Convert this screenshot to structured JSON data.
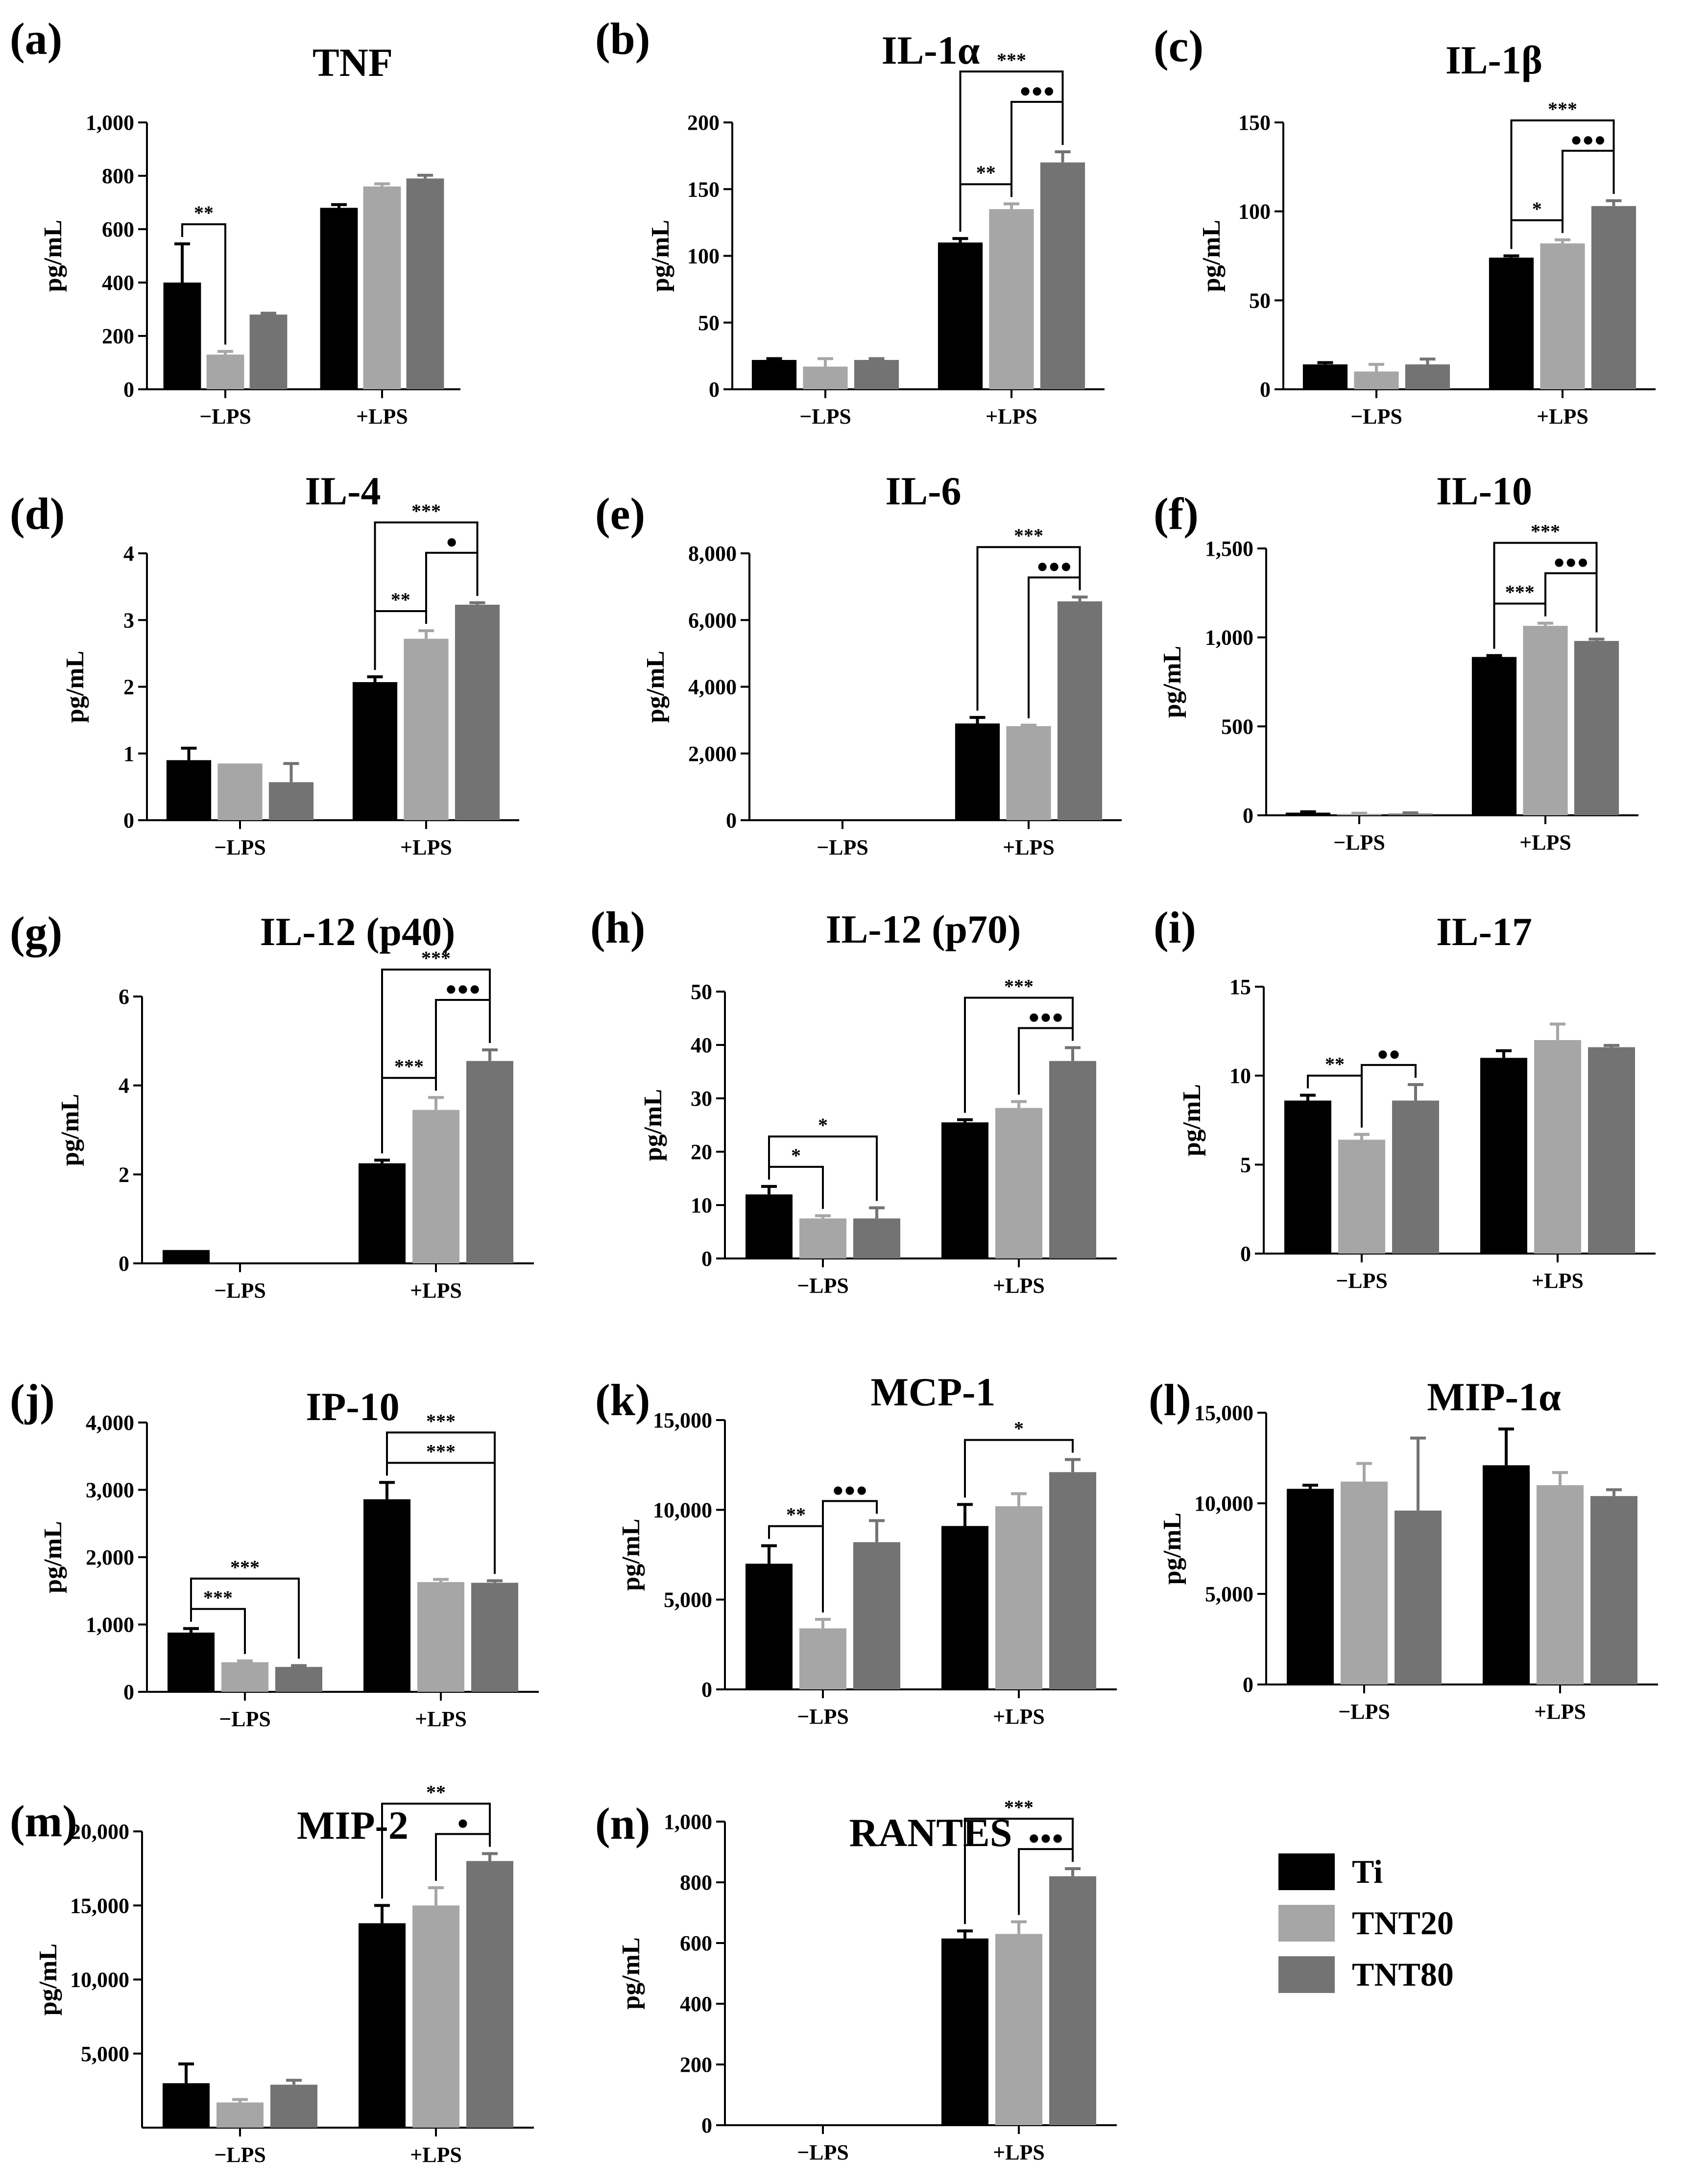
{
  "colors": {
    "Ti": "#000000",
    "TNT20": "#a6a6a6",
    "TNT80": "#737373"
  },
  "legend": [
    {
      "name": "Ti",
      "color": "#000000"
    },
    {
      "name": "TNT20",
      "color": "#a6a6a6"
    },
    {
      "name": "TNT80",
      "color": "#737373"
    }
  ],
  "chart_data": [
    {
      "letter": "(a)",
      "title": "TNF",
      "type": "bar",
      "ylabel": "pg/mL",
      "ylim": [
        0,
        1000
      ],
      "yticks": [
        "0",
        "200",
        "400",
        "600",
        "800",
        "1,000"
      ],
      "categories": [
        "−LPS",
        "+LPS"
      ],
      "series": [
        {
          "name": "Ti",
          "values": [
            400,
            680
          ],
          "errors": [
            145,
            12
          ]
        },
        {
          "name": "TNT20",
          "values": [
            130,
            760
          ],
          "errors": [
            12,
            10
          ]
        },
        {
          "name": "TNT80",
          "values": [
            280,
            790
          ],
          "errors": [
            5,
            12
          ]
        }
      ],
      "annotations": [
        {
          "from": [
            0,
            0
          ],
          "to": [
            0,
            1
          ],
          "label": "**",
          "level": 0
        }
      ]
    },
    {
      "letter": "(b)",
      "title": "IL-1α",
      "type": "bar",
      "ylabel": "pg/mL",
      "ylim": [
        0,
        200
      ],
      "yticks": [
        "0",
        "50",
        "100",
        "150",
        "200"
      ],
      "categories": [
        "−LPS",
        "+LPS"
      ],
      "series": [
        {
          "name": "Ti",
          "values": [
            22,
            110
          ],
          "errors": [
            1,
            3
          ]
        },
        {
          "name": "TNT20",
          "values": [
            17,
            135
          ],
          "errors": [
            6,
            4
          ]
        },
        {
          "name": "TNT80",
          "values": [
            22,
            170
          ],
          "errors": [
            1,
            8
          ]
        }
      ],
      "annotations": [
        {
          "from": [
            1,
            0
          ],
          "to": [
            1,
            1
          ],
          "label": "**",
          "level": 0
        },
        {
          "from": [
            1,
            1
          ],
          "to": [
            1,
            2
          ],
          "label": "●●●",
          "level": 1
        },
        {
          "from": [
            1,
            0
          ],
          "to": [
            1,
            2
          ],
          "label": "***",
          "level": 2
        }
      ]
    },
    {
      "letter": "(c)",
      "title": "IL-1β",
      "type": "bar",
      "ylabel": "pg/mL",
      "ylim": [
        0,
        150
      ],
      "yticks": [
        "0",
        "50",
        "100",
        "150"
      ],
      "categories": [
        "−LPS",
        "+LPS"
      ],
      "series": [
        {
          "name": "Ti",
          "values": [
            14,
            74
          ],
          "errors": [
            1,
            1
          ]
        },
        {
          "name": "TNT20",
          "values": [
            10,
            82
          ],
          "errors": [
            4,
            2
          ]
        },
        {
          "name": "TNT80",
          "values": [
            14,
            103
          ],
          "errors": [
            3,
            3
          ]
        }
      ],
      "annotations": [
        {
          "from": [
            1,
            0
          ],
          "to": [
            1,
            1
          ],
          "label": "*",
          "level": 0
        },
        {
          "from": [
            1,
            1
          ],
          "to": [
            1,
            2
          ],
          "label": "●●●",
          "level": 1
        },
        {
          "from": [
            1,
            0
          ],
          "to": [
            1,
            2
          ],
          "label": "***",
          "level": 2
        }
      ]
    },
    {
      "letter": "(d)",
      "title": "IL-4",
      "type": "bar",
      "ylabel": "pg/mL",
      "ylim": [
        0,
        4
      ],
      "yticks": [
        "0",
        "1",
        "2",
        "3",
        "4"
      ],
      "categories": [
        "−LPS",
        "+LPS"
      ],
      "series": [
        {
          "name": "Ti",
          "values": [
            0.9,
            2.07
          ],
          "errors": [
            0.18,
            0.08
          ]
        },
        {
          "name": "TNT20",
          "values": [
            0.85,
            2.72
          ],
          "errors": [
            0.0,
            0.12
          ]
        },
        {
          "name": "TNT80",
          "values": [
            0.57,
            3.23
          ],
          "errors": [
            0.28,
            0.03
          ]
        }
      ],
      "annotations": [
        {
          "from": [
            1,
            0
          ],
          "to": [
            1,
            1
          ],
          "label": "**",
          "level": 0
        },
        {
          "from": [
            1,
            1
          ],
          "to": [
            1,
            2
          ],
          "label": "●",
          "level": 1
        },
        {
          "from": [
            1,
            0
          ],
          "to": [
            1,
            2
          ],
          "label": "***",
          "level": 2
        }
      ]
    },
    {
      "letter": "(e)",
      "title": "IL-6",
      "type": "bar",
      "ylabel": "pg/mL",
      "ylim": [
        0,
        8000
      ],
      "yticks": [
        "0",
        "2,000",
        "4,000",
        "6,000",
        "8,000"
      ],
      "categories": [
        "−LPS",
        "+LPS"
      ],
      "series": [
        {
          "name": "Ti",
          "values": [
            0,
            2900
          ],
          "errors": [
            0,
            180
          ]
        },
        {
          "name": "TNT20",
          "values": [
            0,
            2820
          ],
          "errors": [
            0,
            30
          ]
        },
        {
          "name": "TNT80",
          "values": [
            0,
            6560
          ],
          "errors": [
            0,
            130
          ]
        }
      ],
      "annotations": [
        {
          "from": [
            1,
            1
          ],
          "to": [
            1,
            2
          ],
          "label": "●●●",
          "level": 0
        },
        {
          "from": [
            1,
            0
          ],
          "to": [
            1,
            2
          ],
          "label": "***",
          "level": 1
        }
      ]
    },
    {
      "letter": "(f)",
      "title": "IL-10",
      "type": "bar",
      "ylabel": "pg/mL",
      "ylim": [
        0,
        1500
      ],
      "yticks": [
        "0",
        "500",
        "1,000",
        "1,500"
      ],
      "categories": [
        "−LPS",
        "+LPS"
      ],
      "series": [
        {
          "name": "Ti",
          "values": [
            15,
            890
          ],
          "errors": [
            5,
            8
          ]
        },
        {
          "name": "TNT20",
          "values": [
            8,
            1065
          ],
          "errors": [
            4,
            15
          ]
        },
        {
          "name": "TNT80",
          "values": [
            10,
            980
          ],
          "errors": [
            4,
            10
          ]
        }
      ],
      "annotations": [
        {
          "from": [
            1,
            0
          ],
          "to": [
            1,
            1
          ],
          "label": "***",
          "level": 0
        },
        {
          "from": [
            1,
            1
          ],
          "to": [
            1,
            2
          ],
          "label": "●●●",
          "level": 1
        },
        {
          "from": [
            1,
            0
          ],
          "to": [
            1,
            2
          ],
          "label": "***",
          "level": 2
        }
      ]
    },
    {
      "letter": "(g)",
      "title": "IL-12 (p40)",
      "type": "bar",
      "ylabel": "pg/mL",
      "ylim": [
        0,
        6
      ],
      "yticks": [
        "0",
        "2",
        "4",
        "6"
      ],
      "categories": [
        "−LPS",
        "+LPS"
      ],
      "series": [
        {
          "name": "Ti",
          "values": [
            0.3,
            2.25
          ],
          "errors": [
            0.0,
            0.07
          ]
        },
        {
          "name": "TNT20",
          "values": [
            0,
            3.45
          ],
          "errors": [
            0,
            0.28
          ]
        },
        {
          "name": "TNT80",
          "values": [
            0,
            4.55
          ],
          "errors": [
            0,
            0.25
          ]
        }
      ],
      "annotations": [
        {
          "from": [
            1,
            0
          ],
          "to": [
            1,
            1
          ],
          "label": "***",
          "level": 0
        },
        {
          "from": [
            1,
            1
          ],
          "to": [
            1,
            2
          ],
          "label": "●●●",
          "level": 1
        },
        {
          "from": [
            1,
            0
          ],
          "to": [
            1,
            2
          ],
          "label": "***",
          "level": 2
        }
      ]
    },
    {
      "letter": "(h)",
      "title": "IL-12 (p70)",
      "type": "bar",
      "ylabel": "pg/mL",
      "ylim": [
        0,
        50
      ],
      "yticks": [
        "0",
        "10",
        "20",
        "30",
        "40",
        "50"
      ],
      "categories": [
        "−LPS",
        "+LPS"
      ],
      "series": [
        {
          "name": "Ti",
          "values": [
            12,
            25.5
          ],
          "errors": [
            1.5,
            0.5
          ]
        },
        {
          "name": "TNT20",
          "values": [
            7.5,
            28.2
          ],
          "errors": [
            0.5,
            1.2
          ]
        },
        {
          "name": "TNT80",
          "values": [
            7.5,
            37
          ],
          "errors": [
            2,
            2.5
          ]
        }
      ],
      "annotations": [
        {
          "from": [
            0,
            0
          ],
          "to": [
            0,
            1
          ],
          "label": "*",
          "level": 0
        },
        {
          "from": [
            0,
            0
          ],
          "to": [
            0,
            2
          ],
          "label": "*",
          "level": 1
        },
        {
          "from": [
            1,
            1
          ],
          "to": [
            1,
            2
          ],
          "label": "●●●",
          "level": 0
        },
        {
          "from": [
            1,
            0
          ],
          "to": [
            1,
            2
          ],
          "label": "***",
          "level": 1
        }
      ]
    },
    {
      "letter": "(i)",
      "title": "IL-17",
      "type": "bar",
      "ylabel": "pg/mL",
      "ylim": [
        0,
        15
      ],
      "yticks": [
        "0",
        "5",
        "10",
        "15"
      ],
      "categories": [
        "−LPS",
        "+LPS"
      ],
      "series": [
        {
          "name": "Ti",
          "values": [
            8.6,
            11
          ],
          "errors": [
            0.3,
            0.4
          ]
        },
        {
          "name": "TNT20",
          "values": [
            6.4,
            12
          ],
          "errors": [
            0.3,
            0.9
          ]
        },
        {
          "name": "TNT80",
          "values": [
            8.6,
            11.6
          ],
          "errors": [
            0.9,
            0.1
          ]
        }
      ],
      "annotations": [
        {
          "from": [
            0,
            0
          ],
          "to": [
            0,
            1
          ],
          "label": "**",
          "level": 0
        },
        {
          "from": [
            0,
            1
          ],
          "to": [
            0,
            2
          ],
          "label": "●●",
          "level": 0
        }
      ]
    },
    {
      "letter": "(j)",
      "title": "IP-10",
      "type": "bar",
      "ylabel": "pg/mL",
      "ylim": [
        0,
        4000
      ],
      "yticks": [
        "0",
        "1,000",
        "2,000",
        "3,000",
        "4,000"
      ],
      "categories": [
        "−LPS",
        "+LPS"
      ],
      "series": [
        {
          "name": "Ti",
          "values": [
            880,
            2860
          ],
          "errors": [
            60,
            250
          ]
        },
        {
          "name": "TNT20",
          "values": [
            440,
            1630
          ],
          "errors": [
            20,
            40
          ]
        },
        {
          "name": "TNT80",
          "values": [
            370,
            1620
          ],
          "errors": [
            20,
            30
          ]
        }
      ],
      "annotations": [
        {
          "from": [
            0,
            0
          ],
          "to": [
            0,
            1
          ],
          "label": "***",
          "level": 0
        },
        {
          "from": [
            0,
            0
          ],
          "to": [
            0,
            2
          ],
          "label": "***",
          "level": 1
        },
        {
          "from": [
            1,
            0
          ],
          "to": [
            1,
            2
          ],
          "label": "***",
          "level": 0
        },
        {
          "from": [
            1,
            0
          ],
          "to": [
            1,
            2
          ],
          "label": "***",
          "level": 1
        }
      ]
    },
    {
      "letter": "(k)",
      "title": "MCP-1",
      "type": "bar",
      "ylabel": "pg/mL",
      "ylim": [
        0,
        15000
      ],
      "yticks": [
        "0",
        "5,000",
        "10,000",
        "15,000"
      ],
      "categories": [
        "−LPS",
        "+LPS"
      ],
      "series": [
        {
          "name": "Ti",
          "values": [
            7000,
            9100
          ],
          "errors": [
            1000,
            1200
          ]
        },
        {
          "name": "TNT20",
          "values": [
            3400,
            10200
          ],
          "errors": [
            500,
            700
          ]
        },
        {
          "name": "TNT80",
          "values": [
            8200,
            12100
          ],
          "errors": [
            1200,
            700
          ]
        }
      ],
      "annotations": [
        {
          "from": [
            0,
            0
          ],
          "to": [
            0,
            1
          ],
          "label": "**",
          "level": 0
        },
        {
          "from": [
            0,
            1
          ],
          "to": [
            0,
            2
          ],
          "label": "●●●",
          "level": 0
        },
        {
          "from": [
            1,
            0
          ],
          "to": [
            1,
            2
          ],
          "label": "*",
          "level": 0
        }
      ]
    },
    {
      "letter": "(l)",
      "title": "MIP-1α",
      "type": "bar",
      "ylabel": "pg/mL",
      "ylim": [
        0,
        15000
      ],
      "yticks": [
        "0",
        "5,000",
        "10,000",
        "15,000"
      ],
      "categories": [
        "−LPS",
        "+LPS"
      ],
      "series": [
        {
          "name": "Ti",
          "values": [
            10800,
            12100
          ],
          "errors": [
            200,
            2000
          ]
        },
        {
          "name": "TNT20",
          "values": [
            11200,
            11000
          ],
          "errors": [
            1000,
            700
          ]
        },
        {
          "name": "TNT80",
          "values": [
            9600,
            10400
          ],
          "errors": [
            4000,
            350
          ]
        }
      ],
      "annotations": []
    },
    {
      "letter": "(m)",
      "title": "MIP-2",
      "type": "bar",
      "ylabel": "pg/mL",
      "ylim": [
        0,
        20000
      ],
      "yticks": [
        "5,000",
        "10,000",
        "15,000",
        "20,000"
      ],
      "categories": [
        "−LPS",
        "+LPS"
      ],
      "series": [
        {
          "name": "Ti",
          "values": [
            3000,
            13800
          ],
          "errors": [
            1300,
            1200
          ]
        },
        {
          "name": "TNT20",
          "values": [
            1700,
            15000
          ],
          "errors": [
            200,
            1200
          ]
        },
        {
          "name": "TNT80",
          "values": [
            2900,
            18000
          ],
          "errors": [
            300,
            500
          ]
        }
      ],
      "annotations": [
        {
          "from": [
            1,
            1
          ],
          "to": [
            1,
            2
          ],
          "label": "●",
          "level": 0
        },
        {
          "from": [
            1,
            0
          ],
          "to": [
            1,
            2
          ],
          "label": "**",
          "level": 1
        }
      ]
    },
    {
      "letter": "(n)",
      "title": "RANTES",
      "type": "bar",
      "ylabel": "pg/mL",
      "ylim": [
        0,
        1000
      ],
      "yticks": [
        "0",
        "200",
        "400",
        "600",
        "800",
        "1,000"
      ],
      "categories": [
        "−LPS",
        "+LPS"
      ],
      "series": [
        {
          "name": "Ti",
          "values": [
            0,
            615
          ],
          "errors": [
            0,
            25
          ]
        },
        {
          "name": "TNT20",
          "values": [
            0,
            630
          ],
          "errors": [
            0,
            40
          ]
        },
        {
          "name": "TNT80",
          "values": [
            0,
            820
          ],
          "errors": [
            0,
            25
          ]
        }
      ],
      "annotations": [
        {
          "from": [
            1,
            1
          ],
          "to": [
            1,
            2
          ],
          "label": "●●●",
          "level": 0
        },
        {
          "from": [
            1,
            0
          ],
          "to": [
            1,
            2
          ],
          "label": "***",
          "level": 1
        }
      ]
    }
  ]
}
